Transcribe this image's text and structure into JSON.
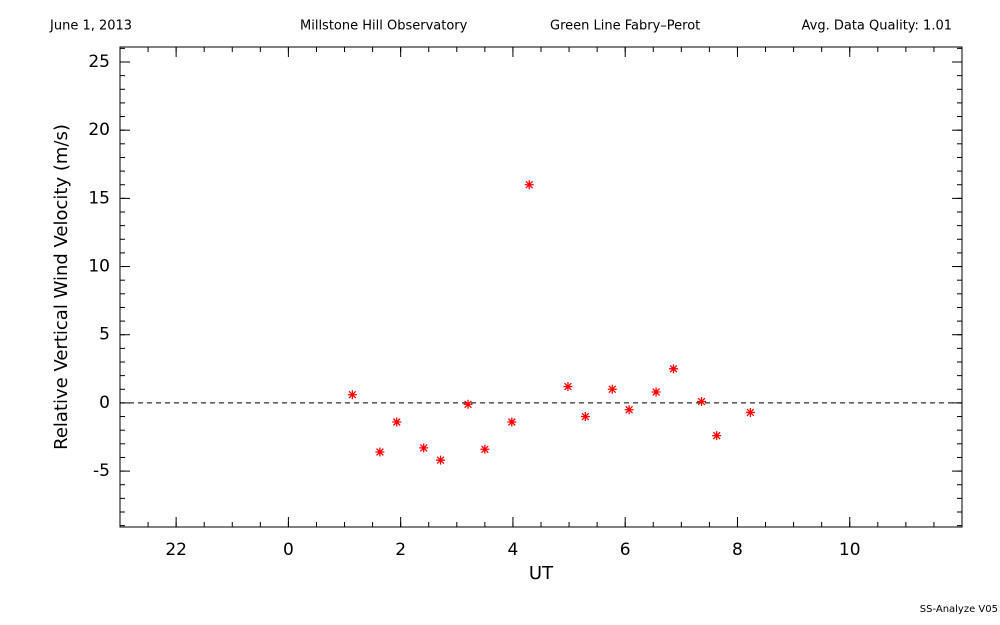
{
  "chart_data": {
    "type": "scatter",
    "header": [
      "June 1, 2013",
      "Millstone Hill Observatory",
      "Green Line Fabry–Perot",
      "Avg. Data Quality: 1.01"
    ],
    "footer": "SS-Analyze V05",
    "xlabel": "UT",
    "ylabel": "Relative Vertical Wind Velocity (m/s)",
    "xlim": [
      -3,
      12
    ],
    "ylim": [
      -9.1,
      26.1
    ],
    "xticks": [
      {
        "value": -2,
        "label": "22"
      },
      0,
      2,
      4,
      6,
      8,
      10
    ],
    "yticks": [
      -5,
      0,
      5,
      10,
      15,
      20,
      25
    ],
    "xminor_step": 0.5,
    "yminor_step": 1,
    "zero_line": true,
    "color": "#ff0000",
    "x": [
      1.14,
      1.63,
      1.93,
      2.41,
      2.71,
      3.2,
      3.5,
      3.98,
      4.29,
      4.98,
      5.29,
      5.77,
      6.07,
      6.55,
      6.86,
      7.36,
      7.63,
      8.23
    ],
    "values": [
      0.6,
      -3.6,
      -1.4,
      -3.3,
      -4.2,
      -0.1,
      -3.4,
      -1.4,
      16.0,
      1.2,
      -1.0,
      1.0,
      -0.5,
      0.8,
      2.5,
      0.1,
      -2.4,
      -0.7
    ]
  }
}
